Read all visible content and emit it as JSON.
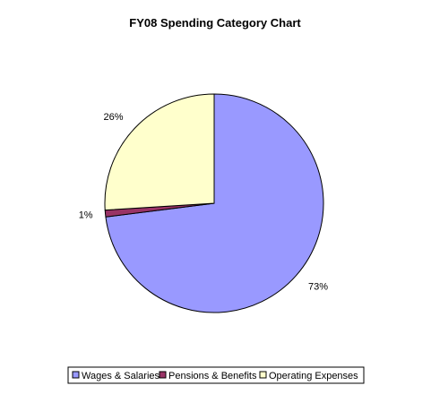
{
  "chart_data": {
    "type": "pie",
    "title": "FY08 Spending Category Chart",
    "categories": [
      "Wages & Salaries",
      "Pensions & Benefits",
      "Operating Expenses"
    ],
    "values": [
      73,
      1,
      26
    ],
    "labels": [
      "73%",
      "1%",
      "26%"
    ],
    "colors": [
      "#9999ff",
      "#993366",
      "#ffffcc"
    ],
    "legend_position": "bottom",
    "start": "top, clockwise"
  }
}
